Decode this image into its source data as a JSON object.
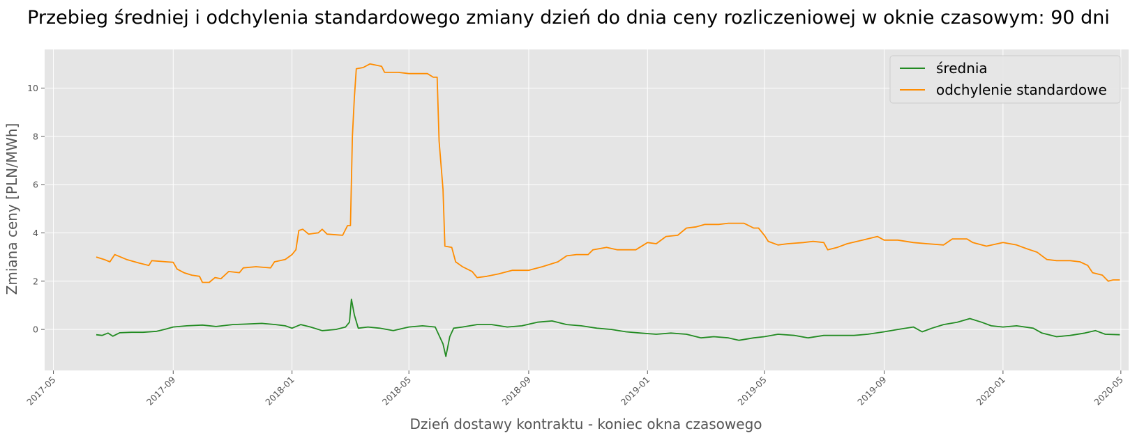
{
  "chart_data": {
    "type": "line",
    "title": "Przebieg średniej i odchylenia standardowego zmiany dzień do dnia ceny rozliczeniowej w oknie czasowym: 90 dni",
    "xlabel": "Dzień dostawy kontraktu - koniec okna czasowego",
    "ylabel": "Zmiana ceny [PLN/MWh]",
    "grid": true,
    "legend_position": "top-right",
    "x_ticks": [
      "2017-05",
      "2017-09",
      "2018-01",
      "2018-05",
      "2018-09",
      "2019-01",
      "2019-05",
      "2019-09",
      "2020-01",
      "2020-05"
    ],
    "y_ticks": [
      0,
      2,
      4,
      6,
      8,
      10
    ],
    "xlim": [
      "2017-04-22",
      "2020-05-09"
    ],
    "ylim": [
      -1.7,
      11.6
    ],
    "series": [
      {
        "name": "średnia",
        "color": "#228B22",
        "points": [
          [
            "2017-06-14",
            -0.22
          ],
          [
            "2017-06-20",
            -0.25
          ],
          [
            "2017-06-26",
            -0.15
          ],
          [
            "2017-07-01",
            -0.28
          ],
          [
            "2017-07-08",
            -0.14
          ],
          [
            "2017-07-20",
            -0.12
          ],
          [
            "2017-08-01",
            -0.12
          ],
          [
            "2017-08-15",
            -0.08
          ],
          [
            "2017-08-25",
            0.02
          ],
          [
            "2017-09-01",
            0.1
          ],
          [
            "2017-09-15",
            0.15
          ],
          [
            "2017-10-01",
            0.18
          ],
          [
            "2017-10-15",
            0.12
          ],
          [
            "2017-11-01",
            0.2
          ],
          [
            "2017-11-15",
            0.22
          ],
          [
            "2017-12-01",
            0.25
          ],
          [
            "2017-12-15",
            0.2
          ],
          [
            "2017-12-25",
            0.15
          ],
          [
            "2018-01-01",
            0.05
          ],
          [
            "2018-01-10",
            0.2
          ],
          [
            "2018-01-20",
            0.1
          ],
          [
            "2018-02-01",
            -0.05
          ],
          [
            "2018-02-15",
            0.0
          ],
          [
            "2018-02-25",
            0.1
          ],
          [
            "2018-03-01",
            0.3
          ],
          [
            "2018-03-03",
            1.25
          ],
          [
            "2018-03-06",
            0.6
          ],
          [
            "2018-03-10",
            0.05
          ],
          [
            "2018-03-20",
            0.1
          ],
          [
            "2018-04-01",
            0.05
          ],
          [
            "2018-04-15",
            -0.05
          ],
          [
            "2018-05-01",
            0.1
          ],
          [
            "2018-05-15",
            0.15
          ],
          [
            "2018-05-28",
            0.1
          ],
          [
            "2018-06-05",
            -0.6
          ],
          [
            "2018-06-08",
            -1.12
          ],
          [
            "2018-06-12",
            -0.3
          ],
          [
            "2018-06-16",
            0.05
          ],
          [
            "2018-06-25",
            0.1
          ],
          [
            "2018-07-10",
            0.2
          ],
          [
            "2018-07-25",
            0.2
          ],
          [
            "2018-08-10",
            0.1
          ],
          [
            "2018-08-25",
            0.15
          ],
          [
            "2018-09-10",
            0.3
          ],
          [
            "2018-09-25",
            0.35
          ],
          [
            "2018-10-10",
            0.2
          ],
          [
            "2018-10-25",
            0.15
          ],
          [
            "2018-11-10",
            0.05
          ],
          [
            "2018-11-25",
            0.0
          ],
          [
            "2018-12-10",
            -0.1
          ],
          [
            "2018-12-25",
            -0.15
          ],
          [
            "2019-01-10",
            -0.2
          ],
          [
            "2019-01-25",
            -0.15
          ],
          [
            "2019-02-10",
            -0.2
          ],
          [
            "2019-02-25",
            -0.35
          ],
          [
            "2019-03-10",
            -0.3
          ],
          [
            "2019-03-25",
            -0.35
          ],
          [
            "2019-04-05",
            -0.45
          ],
          [
            "2019-04-20",
            -0.35
          ],
          [
            "2019-05-01",
            -0.3
          ],
          [
            "2019-05-15",
            -0.2
          ],
          [
            "2019-06-01",
            -0.25
          ],
          [
            "2019-06-15",
            -0.35
          ],
          [
            "2019-07-01",
            -0.25
          ],
          [
            "2019-07-15",
            -0.25
          ],
          [
            "2019-08-01",
            -0.25
          ],
          [
            "2019-08-15",
            -0.2
          ],
          [
            "2019-09-01",
            -0.1
          ],
          [
            "2019-09-15",
            0.0
          ],
          [
            "2019-10-01",
            0.1
          ],
          [
            "2019-10-10",
            -0.1
          ],
          [
            "2019-10-20",
            0.05
          ],
          [
            "2019-11-01",
            0.2
          ],
          [
            "2019-11-15",
            0.3
          ],
          [
            "2019-11-28",
            0.45
          ],
          [
            "2019-12-10",
            0.3
          ],
          [
            "2019-12-20",
            0.15
          ],
          [
            "2020-01-01",
            0.1
          ],
          [
            "2020-01-15",
            0.15
          ],
          [
            "2020-02-01",
            0.05
          ],
          [
            "2020-02-10",
            -0.15
          ],
          [
            "2020-02-25",
            -0.3
          ],
          [
            "2020-03-10",
            -0.25
          ],
          [
            "2020-03-25",
            -0.15
          ],
          [
            "2020-04-05",
            -0.05
          ],
          [
            "2020-04-15",
            -0.2
          ],
          [
            "2020-04-30",
            -0.22
          ]
        ]
      },
      {
        "name": "odchylenie standardowe",
        "color": "#FF8C00",
        "points": [
          [
            "2017-06-14",
            3.0
          ],
          [
            "2017-06-22",
            2.9
          ],
          [
            "2017-06-28",
            2.8
          ],
          [
            "2017-07-03",
            3.1
          ],
          [
            "2017-07-15",
            2.9
          ],
          [
            "2017-07-28",
            2.75
          ],
          [
            "2017-08-07",
            2.65
          ],
          [
            "2017-08-10",
            2.85
          ],
          [
            "2017-08-25",
            2.8
          ],
          [
            "2017-09-01",
            2.78
          ],
          [
            "2017-09-05",
            2.5
          ],
          [
            "2017-09-12",
            2.35
          ],
          [
            "2017-09-20",
            2.25
          ],
          [
            "2017-09-28",
            2.2
          ],
          [
            "2017-10-01",
            1.95
          ],
          [
            "2017-10-08",
            1.95
          ],
          [
            "2017-10-14",
            2.15
          ],
          [
            "2017-10-20",
            2.1
          ],
          [
            "2017-10-28",
            2.4
          ],
          [
            "2017-11-08",
            2.35
          ],
          [
            "2017-11-12",
            2.55
          ],
          [
            "2017-11-25",
            2.6
          ],
          [
            "2017-12-10",
            2.55
          ],
          [
            "2017-12-14",
            2.8
          ],
          [
            "2017-12-25",
            2.9
          ],
          [
            "2018-01-01",
            3.1
          ],
          [
            "2018-01-05",
            3.3
          ],
          [
            "2018-01-08",
            4.1
          ],
          [
            "2018-01-12",
            4.15
          ],
          [
            "2018-01-18",
            3.95
          ],
          [
            "2018-01-28",
            4.0
          ],
          [
            "2018-02-01",
            4.15
          ],
          [
            "2018-02-06",
            3.95
          ],
          [
            "2018-02-22",
            3.9
          ],
          [
            "2018-02-27",
            4.3
          ],
          [
            "2018-03-02",
            4.3
          ],
          [
            "2018-03-04",
            8.0
          ],
          [
            "2018-03-06",
            9.6
          ],
          [
            "2018-03-08",
            10.8
          ],
          [
            "2018-03-15",
            10.85
          ],
          [
            "2018-03-22",
            11.0
          ],
          [
            "2018-04-03",
            10.9
          ],
          [
            "2018-04-06",
            10.65
          ],
          [
            "2018-04-20",
            10.65
          ],
          [
            "2018-05-01",
            10.6
          ],
          [
            "2018-05-20",
            10.6
          ],
          [
            "2018-05-26",
            10.45
          ],
          [
            "2018-05-30",
            10.45
          ],
          [
            "2018-06-01",
            7.8
          ],
          [
            "2018-06-05",
            5.8
          ],
          [
            "2018-06-07",
            3.45
          ],
          [
            "2018-06-14",
            3.4
          ],
          [
            "2018-06-18",
            2.8
          ],
          [
            "2018-06-25",
            2.6
          ],
          [
            "2018-07-05",
            2.4
          ],
          [
            "2018-07-10",
            2.15
          ],
          [
            "2018-07-20",
            2.2
          ],
          [
            "2018-08-01",
            2.3
          ],
          [
            "2018-08-15",
            2.45
          ],
          [
            "2018-09-01",
            2.45
          ],
          [
            "2018-09-15",
            2.6
          ],
          [
            "2018-10-01",
            2.8
          ],
          [
            "2018-10-10",
            3.05
          ],
          [
            "2018-10-20",
            3.1
          ],
          [
            "2018-11-01",
            3.1
          ],
          [
            "2018-11-06",
            3.3
          ],
          [
            "2018-11-20",
            3.4
          ],
          [
            "2018-12-01",
            3.3
          ],
          [
            "2018-12-20",
            3.3
          ],
          [
            "2019-01-01",
            3.6
          ],
          [
            "2019-01-10",
            3.55
          ],
          [
            "2019-01-20",
            3.85
          ],
          [
            "2019-02-01",
            3.9
          ],
          [
            "2019-02-10",
            4.2
          ],
          [
            "2019-02-20",
            4.25
          ],
          [
            "2019-03-01",
            4.35
          ],
          [
            "2019-03-15",
            4.35
          ],
          [
            "2019-03-25",
            4.4
          ],
          [
            "2019-04-10",
            4.4
          ],
          [
            "2019-04-20",
            4.2
          ],
          [
            "2019-04-25",
            4.2
          ],
          [
            "2019-05-01",
            3.9
          ],
          [
            "2019-05-05",
            3.65
          ],
          [
            "2019-05-15",
            3.5
          ],
          [
            "2019-05-25",
            3.55
          ],
          [
            "2019-06-10",
            3.6
          ],
          [
            "2019-06-20",
            3.65
          ],
          [
            "2019-07-01",
            3.6
          ],
          [
            "2019-07-05",
            3.3
          ],
          [
            "2019-07-15",
            3.4
          ],
          [
            "2019-07-25",
            3.55
          ],
          [
            "2019-08-10",
            3.7
          ],
          [
            "2019-08-25",
            3.85
          ],
          [
            "2019-09-01",
            3.7
          ],
          [
            "2019-09-15",
            3.7
          ],
          [
            "2019-10-01",
            3.6
          ],
          [
            "2019-10-15",
            3.55
          ],
          [
            "2019-11-01",
            3.5
          ],
          [
            "2019-11-10",
            3.75
          ],
          [
            "2019-11-25",
            3.75
          ],
          [
            "2019-12-01",
            3.6
          ],
          [
            "2019-12-15",
            3.45
          ],
          [
            "2020-01-01",
            3.6
          ],
          [
            "2020-01-15",
            3.5
          ],
          [
            "2020-01-25",
            3.35
          ],
          [
            "2020-02-05",
            3.2
          ],
          [
            "2020-02-15",
            2.9
          ],
          [
            "2020-02-25",
            2.85
          ],
          [
            "2020-03-10",
            2.85
          ],
          [
            "2020-03-20",
            2.8
          ],
          [
            "2020-03-28",
            2.65
          ],
          [
            "2020-04-02",
            2.35
          ],
          [
            "2020-04-12",
            2.25
          ],
          [
            "2020-04-18",
            2.0
          ],
          [
            "2020-04-23",
            2.05
          ],
          [
            "2020-04-30",
            2.05
          ]
        ]
      }
    ]
  }
}
